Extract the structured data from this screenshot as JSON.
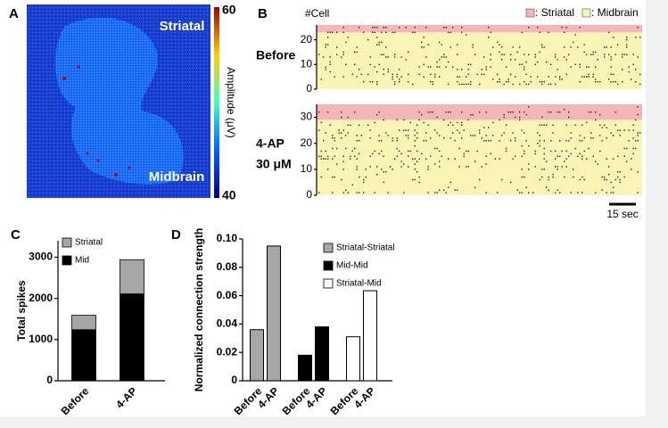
{
  "panel_a": {
    "panel_label": "A",
    "top_label": "Striatal",
    "bottom_label": "Midbrain",
    "colorbar": {
      "label": "Amplitude (μV)",
      "max": 60,
      "min": 40
    }
  },
  "panel_b": {
    "panel_label": "B",
    "y_label": "#Cell",
    "legend": [
      {
        "name": ": Striatal",
        "color": "#f4b6b8"
      },
      {
        "name": ": Midbrain",
        "color": "#fbf5b5"
      }
    ],
    "scale_bar": "15 sec",
    "rasters": [
      {
        "label": [
          "Before"
        ],
        "ylim": [
          0,
          26
        ],
        "yticks": [
          0,
          10,
          20
        ],
        "striatal_from": 23
      },
      {
        "label": [
          "4-AP",
          "30 μM"
        ],
        "ylim": [
          0,
          35
        ],
        "yticks": [
          0,
          10,
          20,
          30
        ],
        "striatal_from": 29
      }
    ]
  },
  "chart_data": [
    {
      "type": "bar",
      "stacked": true,
      "panel_label": "C",
      "y_label": "Total spikes",
      "categories": [
        "Before",
        "4-AP"
      ],
      "series": [
        {
          "name": "Mid",
          "color": "#000000",
          "values": [
            1240,
            2110
          ]
        },
        {
          "name": "Striatal",
          "color": "#a6a6a6",
          "values": [
            350,
            830
          ]
        }
      ],
      "ylim": [
        0,
        3400
      ],
      "yticks": [
        0,
        1000,
        2000,
        3000
      ]
    },
    {
      "type": "bar",
      "stacked": false,
      "panel_label": "D",
      "y_label": "Normalized connection strength",
      "categories": [
        "Before",
        "4-AP"
      ],
      "series": [
        {
          "name": "Striatal-Striatal",
          "color": "#a6a6a6",
          "values": [
            0.036,
            0.095
          ]
        },
        {
          "name": "Mid-Mid",
          "color": "#000000",
          "values": [
            0.018,
            0.038
          ]
        },
        {
          "name": "Striatal-Mid",
          "color": "#ffffff",
          "values": [
            0.031,
            0.0635
          ]
        }
      ],
      "ylim": [
        0,
        0.1
      ],
      "yticks": [
        0,
        0.02,
        0.04,
        0.06,
        0.08,
        {
          "value": 0.1,
          "label": "0.10"
        }
      ]
    }
  ]
}
